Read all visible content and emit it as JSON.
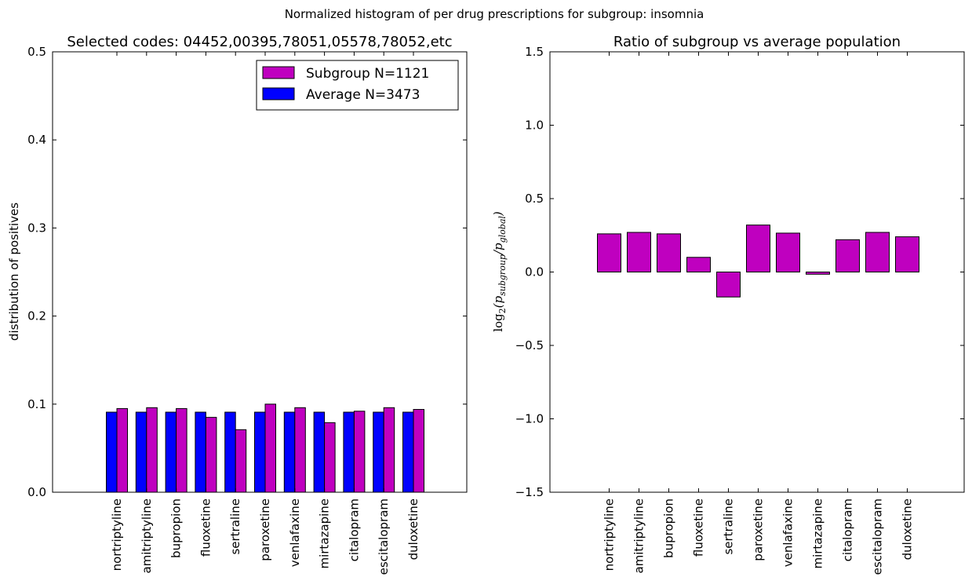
{
  "figure": {
    "suptitle": "Normalized histogram of per drug prescriptions for subgroup: insomnia"
  },
  "chart_data": [
    {
      "type": "bar",
      "title": "Selected codes: 04452,00395,78051,05578,78052,etc",
      "xlabel": "",
      "ylabel": "distribution of positives",
      "ylim": [
        0,
        0.5
      ],
      "yticks": [
        "0.0",
        "0.1",
        "0.2",
        "0.3",
        "0.4",
        "0.5"
      ],
      "categories": [
        "nortriptyline",
        "amitriptyline",
        "bupropion",
        "fluoxetine",
        "sertraline",
        "paroxetine",
        "venlafaxine",
        "mirtazapine",
        "citalopram",
        "escitalopram",
        "duloxetine"
      ],
      "legend_position": "top-right",
      "series": [
        {
          "name": "Subgroup N=1121",
          "color": "#bf00bf",
          "values": [
            0.095,
            0.096,
            0.095,
            0.085,
            0.071,
            0.1,
            0.096,
            0.079,
            0.092,
            0.096,
            0.094
          ]
        },
        {
          "name": "Average N=3473",
          "color": "#0000ff",
          "values": [
            0.0909,
            0.0909,
            0.0909,
            0.0909,
            0.0909,
            0.0909,
            0.0909,
            0.0909,
            0.0909,
            0.0909,
            0.0909
          ]
        }
      ]
    },
    {
      "type": "bar",
      "title": "Ratio of subgroup vs average population",
      "xlabel": "",
      "ylabel_parts": {
        "base": "log",
        "sub": "2",
        "body": "(p",
        "num_sub": "subgroup",
        "mid": "/p",
        "den_sub": "global",
        "end": ")"
      },
      "ylim": [
        -1.5,
        1.5
      ],
      "yticks": [
        "−1.5",
        "−1.0",
        "−0.5",
        "0.0",
        "0.5",
        "1.0",
        "1.5"
      ],
      "categories": [
        "nortriptyline",
        "amitriptyline",
        "bupropion",
        "fluoxetine",
        "sertraline",
        "paroxetine",
        "venlafaxine",
        "mirtazapine",
        "citalopram",
        "escitalopram",
        "duloxetine"
      ],
      "series": [
        {
          "color": "#bf00bf",
          "values": [
            0.26,
            0.27,
            0.26,
            0.1,
            -0.17,
            0.32,
            0.265,
            -0.015,
            0.22,
            0.27,
            0.24
          ]
        }
      ]
    }
  ]
}
